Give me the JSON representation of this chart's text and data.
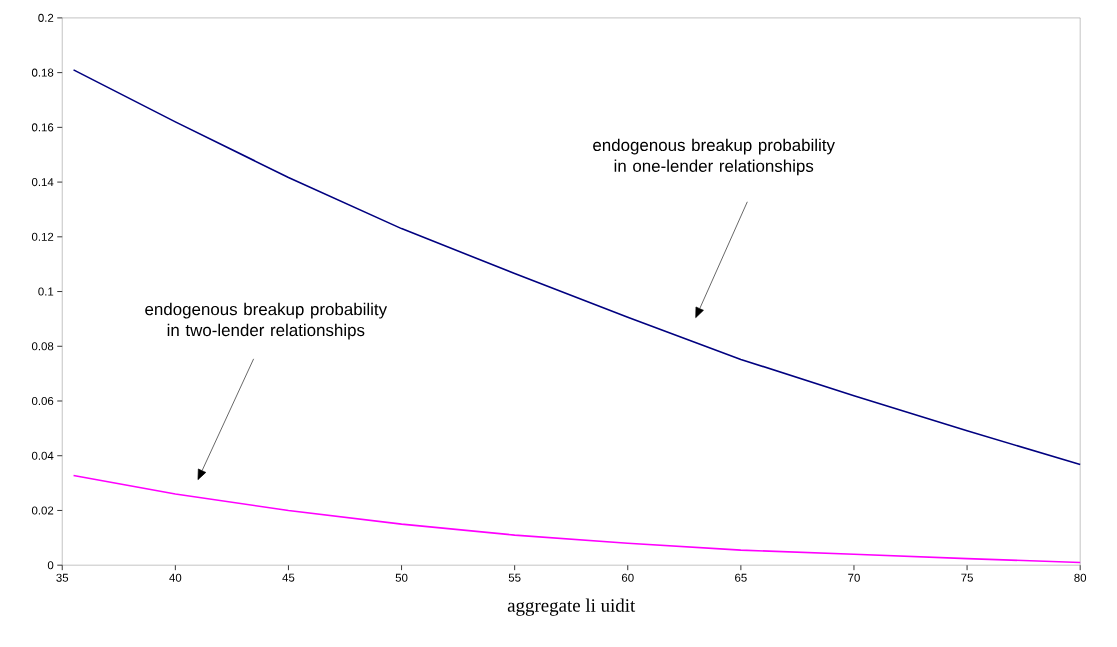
{
  "chart_data": {
    "type": "line",
    "xlabel": "aggregate li uidit",
    "xlim": [
      35,
      80
    ],
    "xticks": [
      35,
      40,
      45,
      50,
      55,
      60,
      65,
      70,
      75,
      80
    ],
    "ylim": [
      0,
      0.2
    ],
    "yticks": [
      0,
      0.02,
      0.04,
      0.06,
      0.08,
      0.1,
      0.12,
      0.14,
      0.16,
      0.18,
      0.2
    ],
    "grid": false,
    "marker": "none",
    "line_style": "solid",
    "series": [
      {
        "color": "#000080",
        "x": [
          35.5,
          40,
          45,
          50,
          55,
          60,
          65,
          70,
          75,
          80
        ],
        "values": [
          0.181,
          0.162,
          0.1417,
          0.123,
          0.1066,
          0.0906,
          0.0752,
          0.0619,
          0.0491,
          0.0368
        ]
      },
      {
        "color": "#ff00ff",
        "x": [
          35.5,
          40,
          45,
          50,
          55,
          60,
          65,
          70,
          75,
          80
        ],
        "values": [
          0.0328,
          0.026,
          0.02,
          0.015,
          0.011,
          0.008,
          0.0055,
          0.004,
          0.0024,
          0.001
        ]
      }
    ],
    "annotations": [
      "endogenous breakup probability in one-lender relationships",
      "endogenous breakup probability in two-lender relationships"
    ]
  }
}
